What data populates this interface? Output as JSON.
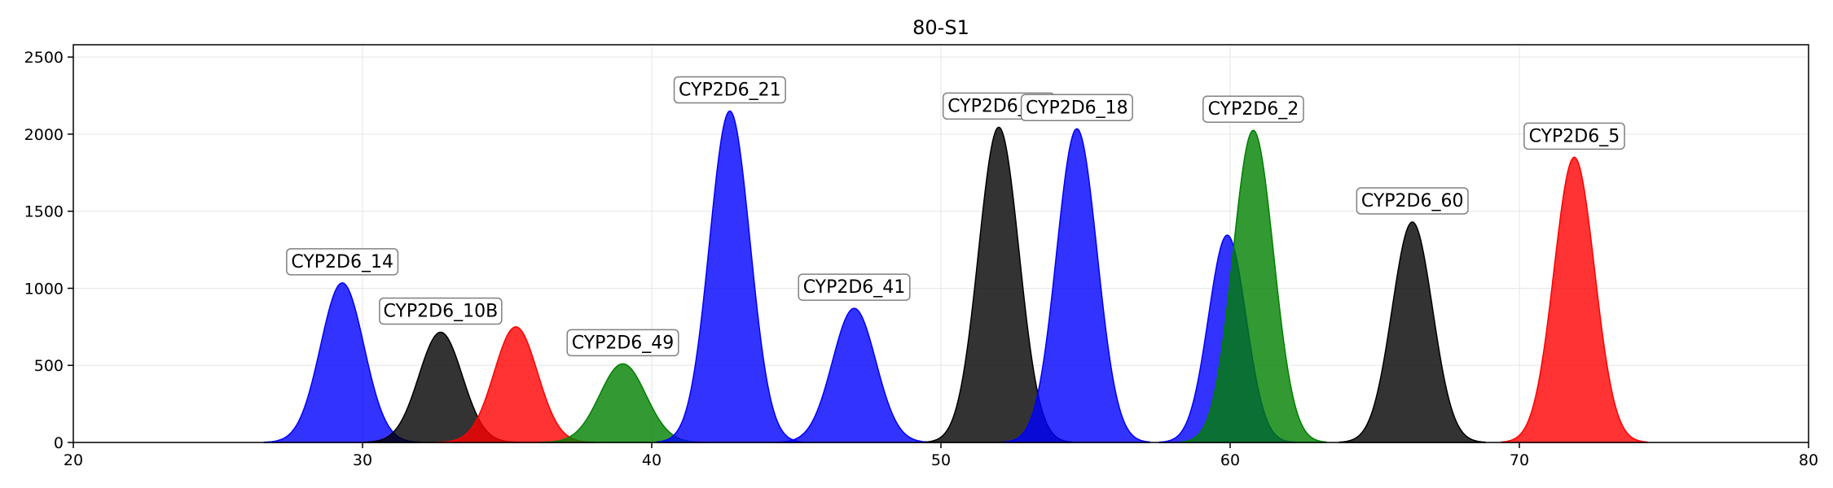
{
  "chart_data": {
    "type": "area",
    "title": "80-S1",
    "xlabel": "",
    "ylabel": "",
    "xlim": [
      20,
      80
    ],
    "ylim": [
      0,
      2580
    ],
    "x_ticks": [
      20,
      30,
      40,
      50,
      60,
      70,
      80
    ],
    "y_ticks": [
      0,
      500,
      1000,
      1500,
      2000,
      2500
    ],
    "grid": true,
    "colors": {
      "blue": "#0000ff",
      "black": "#000000",
      "red": "#ff0000",
      "green": "#008000"
    },
    "peaks": [
      {
        "label": "CYP2D6_14",
        "center": 29.3,
        "height": 1035,
        "width": 0.75,
        "color": "blue"
      },
      {
        "label": "CYP2D6_10B",
        "center": 32.7,
        "height": 715,
        "width": 0.75,
        "color": "black"
      },
      {
        "label": "",
        "center": 35.3,
        "height": 750,
        "width": 0.75,
        "color": "red"
      },
      {
        "label": "CYP2D6_49",
        "center": 39.0,
        "height": 510,
        "width": 0.8,
        "color": "green"
      },
      {
        "label": "CYP2D6_21",
        "center": 42.7,
        "height": 2150,
        "width": 0.7,
        "color": "blue"
      },
      {
        "label": "CYP2D6_41",
        "center": 47.0,
        "height": 870,
        "width": 0.75,
        "color": "blue"
      },
      {
        "label": "CYP2D6_52",
        "center": 52.0,
        "height": 2045,
        "width": 0.7,
        "color": "black"
      },
      {
        "label": "CYP2D6_18",
        "center": 54.7,
        "height": 2035,
        "width": 0.7,
        "color": "blue"
      },
      {
        "label": "",
        "center": 59.9,
        "height": 1345,
        "width": 0.65,
        "color": "blue"
      },
      {
        "label": "CYP2D6_2",
        "center": 60.8,
        "height": 2025,
        "width": 0.7,
        "color": "green"
      },
      {
        "label": "CYP2D6_60",
        "center": 66.3,
        "height": 1430,
        "width": 0.7,
        "color": "black"
      },
      {
        "label": "CYP2D6_5",
        "center": 71.9,
        "height": 1850,
        "width": 0.7,
        "color": "red"
      }
    ]
  }
}
